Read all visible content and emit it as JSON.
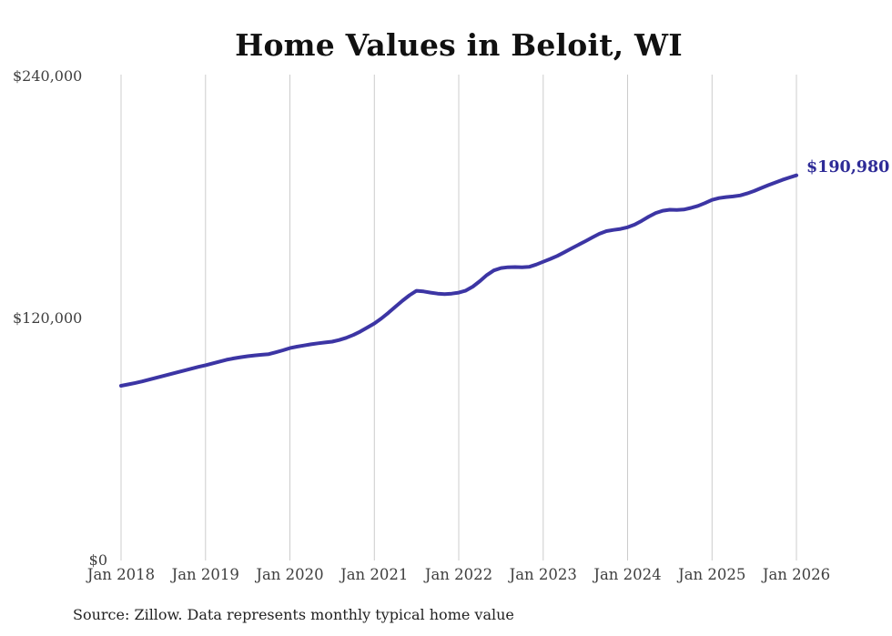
{
  "title": "Home Values in Beloit, WI",
  "source_note": "Source: Zillow. Data represents monthly typical home value",
  "end_label": "$190,980",
  "colors": {
    "line": "#3c35a4",
    "end_label": "#2e2b97",
    "gridline": "#cccccc",
    "title_text": "#111111",
    "axis_text": "#3f3f3f",
    "source_text": "#222222",
    "background": "#ffffff"
  },
  "chart_data": {
    "type": "line",
    "title": "Home Values in Beloit, WI",
    "series_name": "Typical home value (USD)",
    "x_interval": "monthly",
    "grid": "vertical",
    "legend": "none",
    "ylim": [
      0,
      240000
    ],
    "y_ticks": [
      {
        "label": "$0",
        "value": 0
      },
      {
        "label": "$120,000",
        "value": 120000
      },
      {
        "label": "$240,000",
        "value": 240000
      }
    ],
    "x_tick_labels": [
      "Jan 2018",
      "Jan 2019",
      "Jan 2020",
      "Jan 2021",
      "Jan 2022",
      "Jan 2023",
      "Jan 2024",
      "Jan 2025",
      "Jan 2026"
    ],
    "last_value": 190980,
    "last_value_label": "$190,980",
    "x": [
      "Jan 2018",
      "Feb 2018",
      "Mar 2018",
      "Apr 2018",
      "May 2018",
      "Jun 2018",
      "Jul 2018",
      "Aug 2018",
      "Sep 2018",
      "Oct 2018",
      "Nov 2018",
      "Dec 2018",
      "Jan 2019",
      "Feb 2019",
      "Mar 2019",
      "Apr 2019",
      "May 2019",
      "Jun 2019",
      "Jul 2019",
      "Aug 2019",
      "Sep 2019",
      "Oct 2019",
      "Nov 2019",
      "Dec 2019",
      "Jan 2020",
      "Feb 2020",
      "Mar 2020",
      "Apr 2020",
      "May 2020",
      "Jun 2020",
      "Jul 2020",
      "Aug 2020",
      "Sep 2020",
      "Oct 2020",
      "Nov 2020",
      "Dec 2020",
      "Jan 2021",
      "Feb 2021",
      "Mar 2021",
      "Apr 2021",
      "May 2021",
      "Jun 2021",
      "Jul 2021",
      "Aug 2021",
      "Sep 2021",
      "Oct 2021",
      "Nov 2021",
      "Dec 2021",
      "Jan 2022",
      "Feb 2022",
      "Mar 2022",
      "Apr 2022",
      "May 2022",
      "Jun 2022",
      "Jul 2022",
      "Aug 2022",
      "Sep 2022",
      "Oct 2022",
      "Nov 2022",
      "Dec 2022",
      "Jan 2023",
      "Feb 2023",
      "Mar 2023",
      "Apr 2023",
      "May 2023",
      "Jun 2023",
      "Jul 2023",
      "Aug 2023",
      "Sep 2023",
      "Oct 2023",
      "Nov 2023",
      "Dec 2023",
      "Jan 2024",
      "Feb 2024",
      "Mar 2024",
      "Apr 2024",
      "May 2024",
      "Jun 2024",
      "Jul 2024",
      "Aug 2024",
      "Sep 2024",
      "Oct 2024",
      "Nov 2024",
      "Dec 2024",
      "Jan 2025",
      "Feb 2025",
      "Mar 2025",
      "Apr 2025",
      "May 2025",
      "Jun 2025",
      "Jul 2025",
      "Aug 2025",
      "Sep 2025",
      "Oct 2025",
      "Nov 2025",
      "Dec 2025",
      "Jan 2026"
    ],
    "values": [
      86600,
      87300,
      88000,
      88800,
      89700,
      90600,
      91500,
      92400,
      93300,
      94200,
      95100,
      96000,
      96800,
      97700,
      98600,
      99500,
      100200,
      100800,
      101300,
      101700,
      102000,
      102300,
      103200,
      104200,
      105300,
      106000,
      106600,
      107200,
      107700,
      108100,
      108500,
      109300,
      110400,
      111800,
      113500,
      115500,
      117500,
      120000,
      122800,
      125800,
      128800,
      131500,
      133700,
      133400,
      132800,
      132300,
      132100,
      132300,
      132800,
      133800,
      135800,
      138500,
      141500,
      143800,
      145000,
      145400,
      145500,
      145400,
      145600,
      146700,
      148100,
      149500,
      151000,
      152800,
      154700,
      156500,
      158300,
      160200,
      162000,
      163300,
      163900,
      164400,
      165200,
      166500,
      168400,
      170500,
      172300,
      173400,
      173900,
      173800,
      174000,
      174800,
      175800,
      177200,
      178800,
      179700,
      180200,
      180500,
      181000,
      182000,
      183200,
      184700,
      186100,
      187400,
      188700,
      189900,
      190980
    ]
  }
}
